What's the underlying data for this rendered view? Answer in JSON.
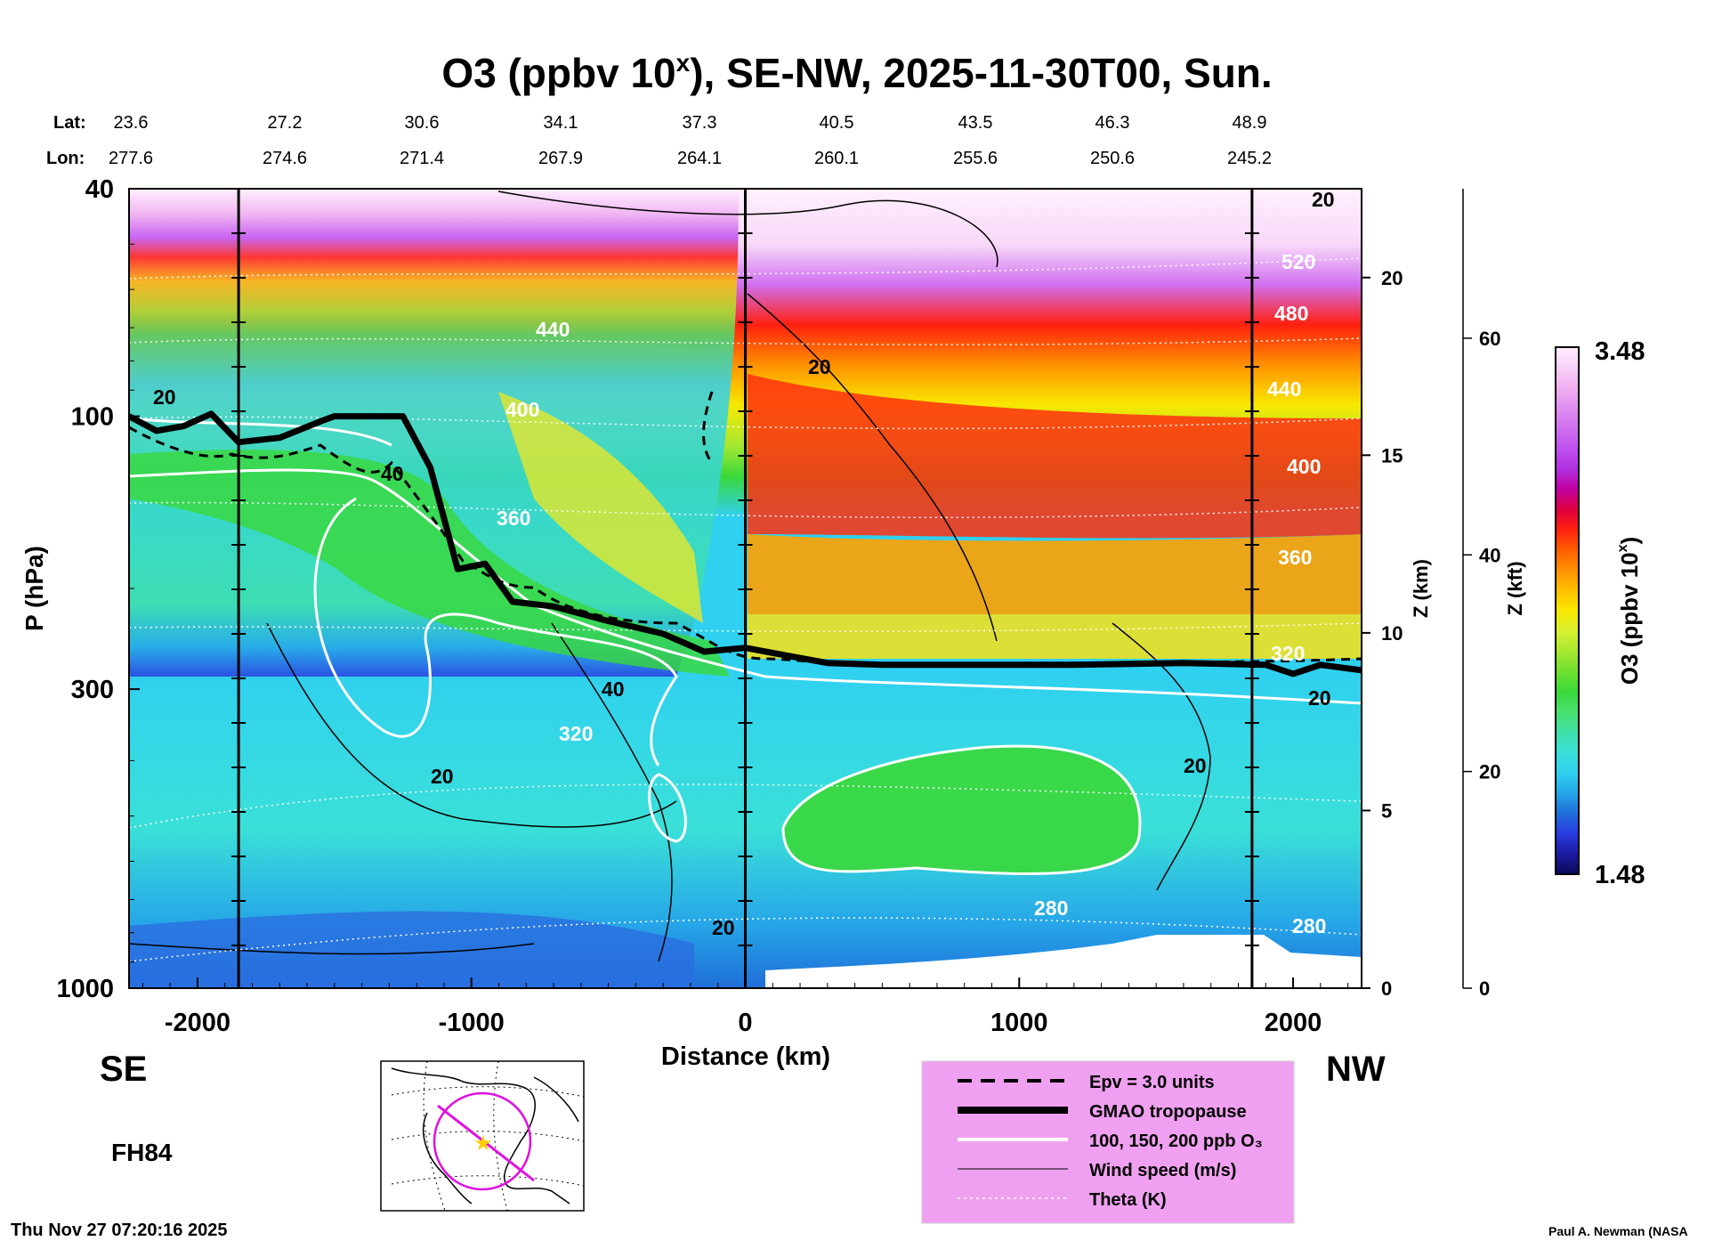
{
  "chart_data": {
    "type": "heatmap",
    "title_main": "O3 (ppbv 10",
    "title_sup": "x",
    "title_rest": "), SE-NW, 2025-11-30T00, Sun.",
    "lat_label": "Lat:",
    "lon_label": "Lon:",
    "lats": [
      "23.6",
      "27.2",
      "30.6",
      "34.1",
      "37.3",
      "40.5",
      "43.5",
      "46.3",
      "48.9"
    ],
    "lons": [
      "277.6",
      "274.6",
      "271.4",
      "267.9",
      "264.1",
      "260.1",
      "255.6",
      "250.6",
      "245.2"
    ],
    "xlabel": "Distance (km)",
    "xticks": [
      -2000,
      -1000,
      0,
      1000,
      2000
    ],
    "xlim": [
      -2250,
      2250
    ],
    "ylabel": "P (hPa)",
    "yticks": [
      40,
      100,
      300,
      1000
    ],
    "ylim": [
      1000,
      40
    ],
    "yscale": "log",
    "zkm_label": "Z (km)",
    "zkm_ticks": [
      0,
      5,
      10,
      15,
      20
    ],
    "zkft_label": "Z (kft)",
    "zkft_ticks": [
      0,
      20,
      40,
      60
    ],
    "colorbar_label": "O3 (ppbv 10",
    "colorbar_sup": "x",
    "colorbar_close": ")",
    "colorbar_max": "3.48",
    "colorbar_min": "1.48",
    "colorbar_colors": [
      "#0a0a5a",
      "#1a1aa0",
      "#2a3ce0",
      "#1f6ed8",
      "#26a6e8",
      "#30d0f0",
      "#3ae0d8",
      "#40e0a8",
      "#4ae070",
      "#3ad83a",
      "#70e030",
      "#a8e830",
      "#d8f030",
      "#f8e800",
      "#ffc000",
      "#ff9000",
      "#ff6000",
      "#ff2010",
      "#e00040",
      "#c000a0",
      "#b030e0",
      "#c050f0",
      "#d070f0",
      "#e090f0",
      "#f0b0f0",
      "#f8d0f8",
      "#fff0ff"
    ],
    "contour_labels": {
      "wind": [
        "20",
        "40",
        "20",
        "40",
        "20",
        "20",
        "20",
        "20",
        "20"
      ],
      "theta": [
        "440",
        "400",
        "360",
        "320",
        "280",
        "280",
        "440",
        "400",
        "360",
        "320",
        "480",
        "520"
      ]
    },
    "left_label": "SE",
    "right_label": "NW",
    "forecast_hour": "FH84",
    "timestamp": "Thu Nov 27 07:20:16 2025",
    "credit": "Paul A. Newman (NASA",
    "legend": [
      {
        "style": "dashed",
        "label": "Epv = 3.0 units"
      },
      {
        "style": "thick",
        "label": "GMAO tropopause"
      },
      {
        "style": "white",
        "label": "100, 150, 200 ppb O₃"
      },
      {
        "style": "thin",
        "label": "Wind speed (m/s)"
      },
      {
        "style": "dotted",
        "label": "Theta (K)"
      }
    ],
    "legend_bg": "#f0a0f0",
    "tropopause_km": [
      [
        -2250,
        100
      ],
      [
        -2150,
        106
      ],
      [
        -2050,
        104
      ],
      [
        -1950,
        99
      ],
      [
        -1850,
        111
      ],
      [
        -1700,
        109
      ],
      [
        -1550,
        102
      ],
      [
        -1500,
        100
      ],
      [
        -1250,
        100
      ],
      [
        -1150,
        123
      ],
      [
        -1050,
        185
      ],
      [
        -950,
        181
      ],
      [
        -850,
        211
      ],
      [
        -700,
        215
      ],
      [
        -500,
        228
      ],
      [
        -300,
        240
      ],
      [
        -150,
        258
      ],
      [
        0,
        254
      ],
      [
        150,
        262
      ],
      [
        300,
        270
      ],
      [
        500,
        272
      ],
      [
        800,
        272
      ],
      [
        1200,
        272
      ],
      [
        1600,
        270
      ],
      [
        1900,
        272
      ],
      [
        2000,
        282
      ],
      [
        2100,
        272
      ],
      [
        2250,
        278
      ]
    ]
  }
}
